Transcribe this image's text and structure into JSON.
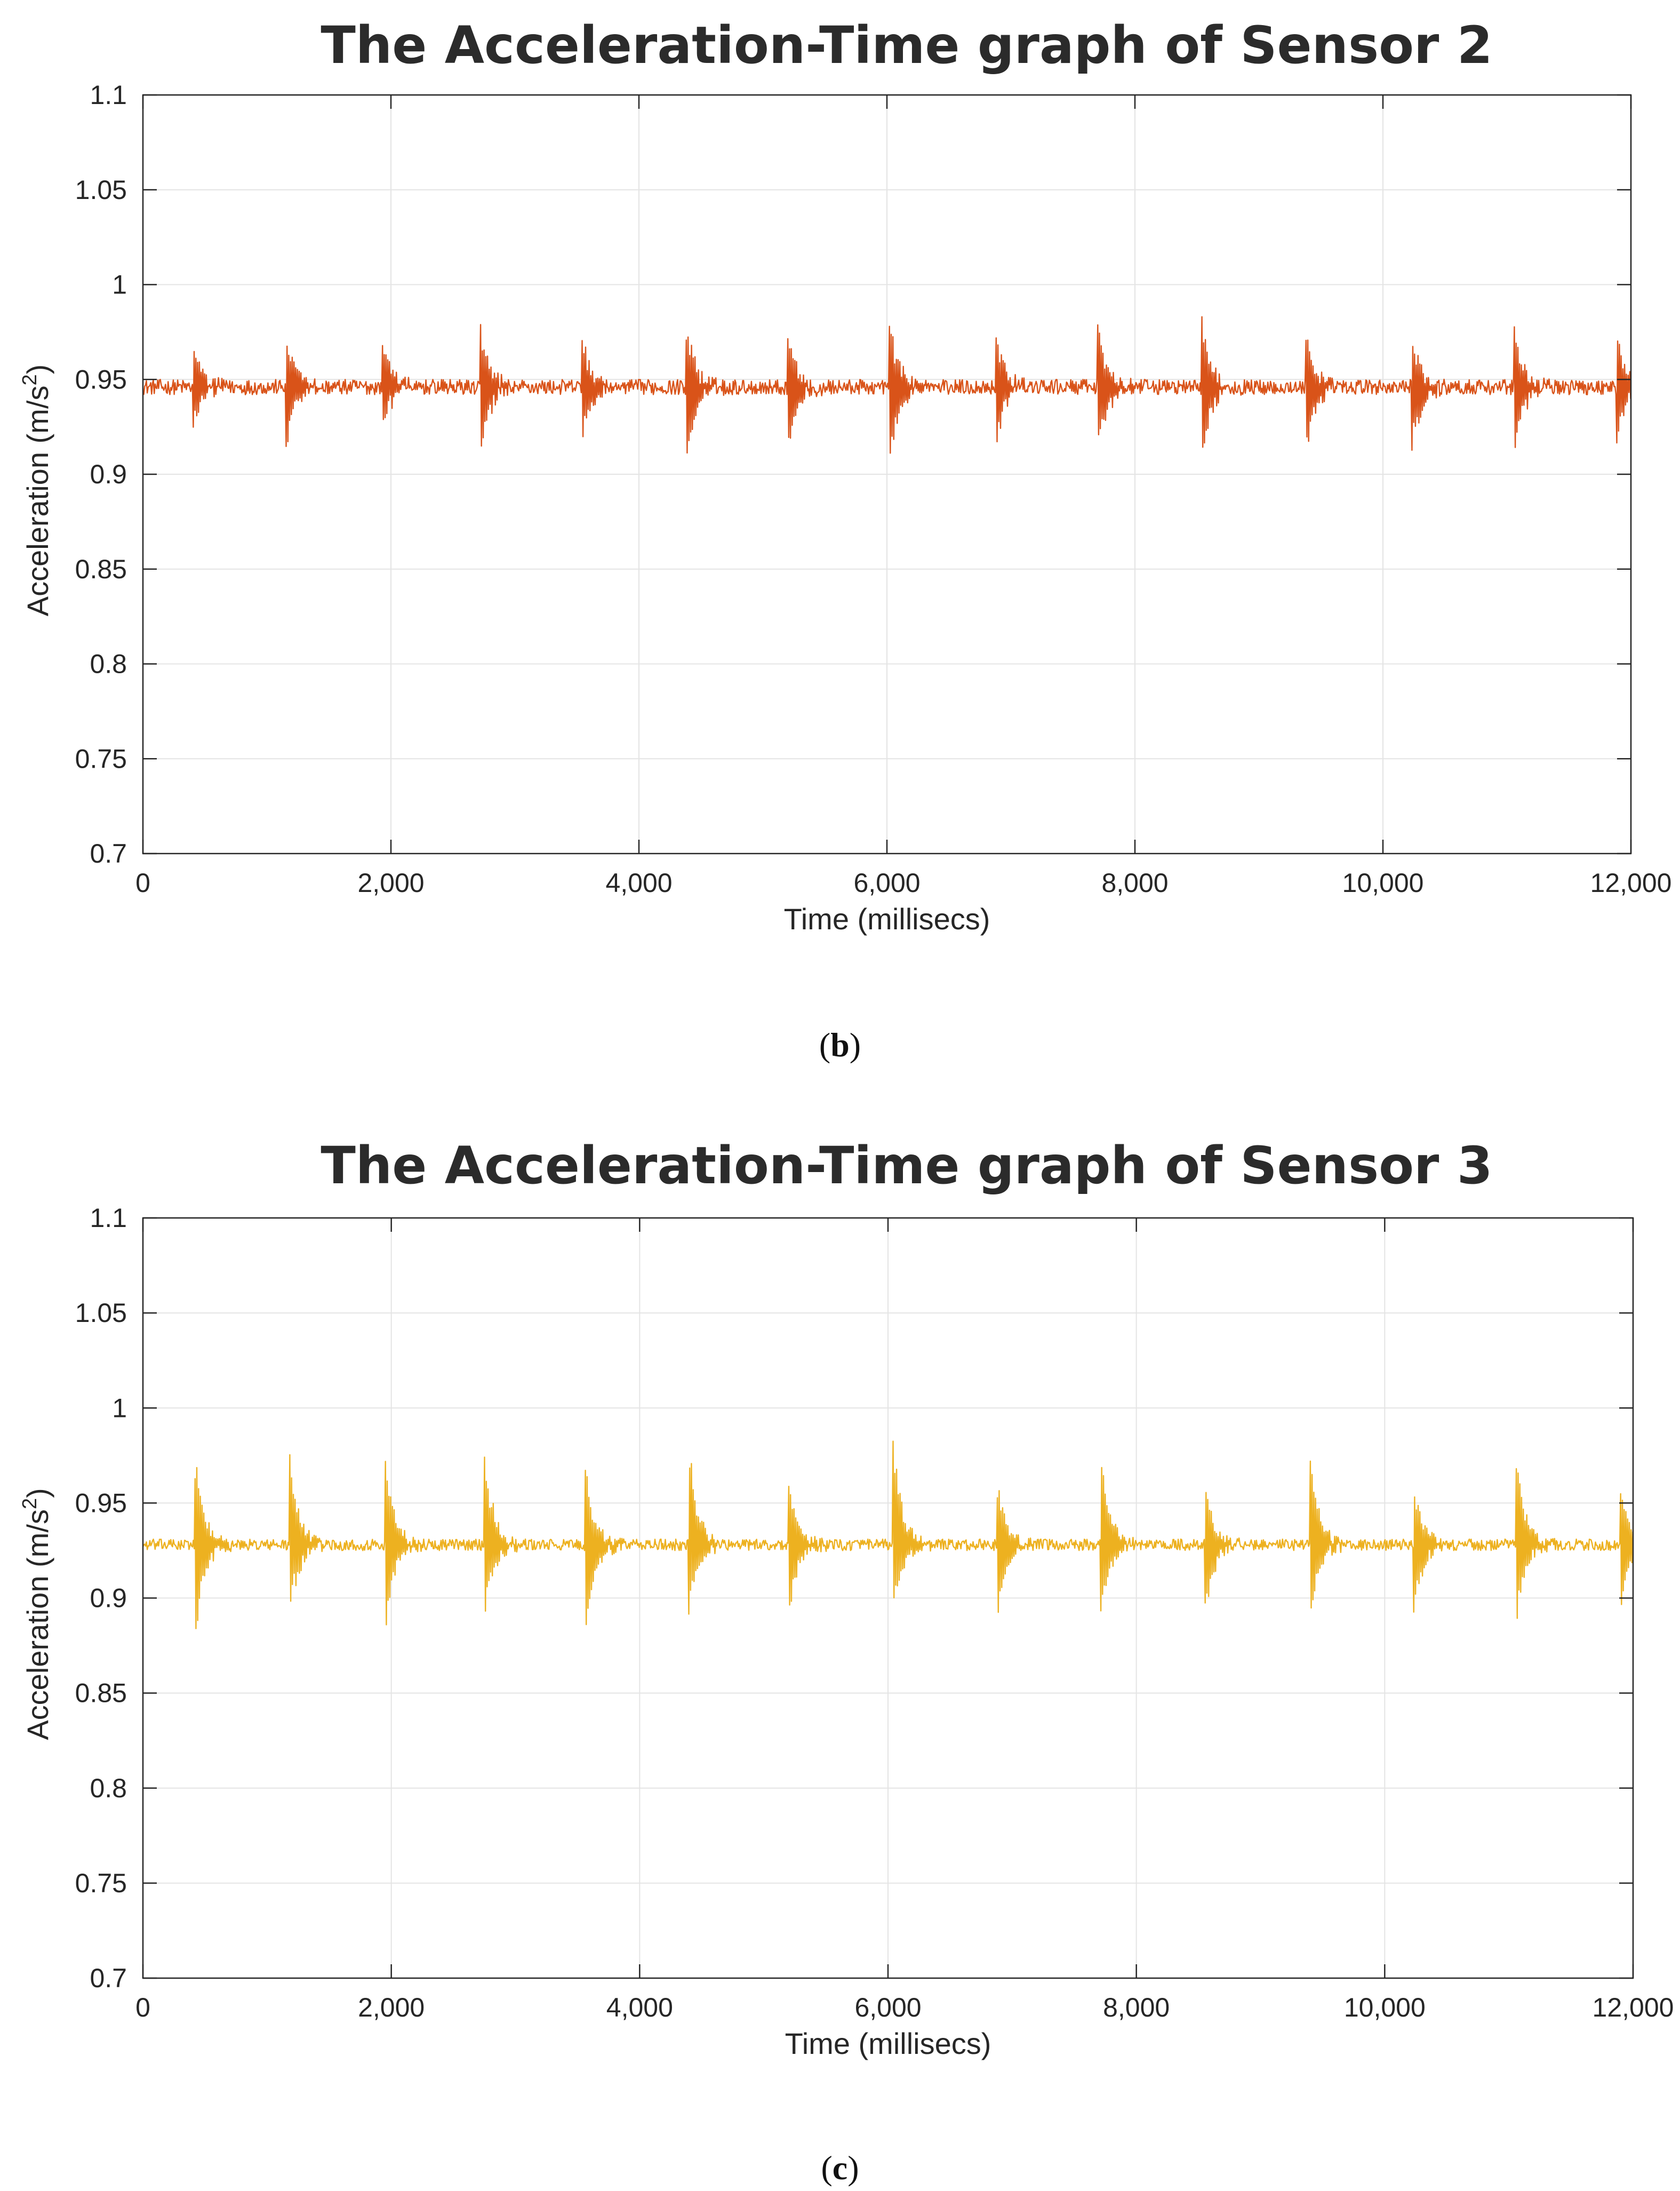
{
  "chart_data": [
    {
      "type": "line",
      "title": "The Acceleration-Time graph of Sensor 2",
      "xlabel": "Time (millisecs)",
      "ylabel_main": "Acceleration (m/s",
      "ylabel_sup": "2",
      "ylabel_end": ")",
      "xlim": [
        0,
        12000
      ],
      "ylim": [
        0.7,
        1.1
      ],
      "xticks": [
        0,
        2000,
        4000,
        6000,
        8000,
        10000,
        12000
      ],
      "xtick_labels": [
        "0",
        "2,000",
        "4,000",
        "6,000",
        "8,000",
        "10,000",
        "12,000"
      ],
      "yticks": [
        0.7,
        0.75,
        0.8,
        0.85,
        0.9,
        0.95,
        1,
        1.05,
        1.1
      ],
      "ytick_labels": [
        "0.7",
        "0.75",
        "0.8",
        "0.85",
        "0.9",
        "0.95",
        "1",
        "1.05",
        "1.1"
      ],
      "grid": true,
      "color": "#d95319",
      "series": [
        {
          "baseline": 0.946,
          "noise": 0.004,
          "spikes": [
            {
              "x": 400,
              "high": 0.97,
              "low": 0.922
            },
            {
              "x": 1150,
              "high": 0.978,
              "low": 0.909
            },
            {
              "x": 1930,
              "high": 0.972,
              "low": 0.92
            },
            {
              "x": 2720,
              "high": 0.98,
              "low": 0.905
            },
            {
              "x": 3540,
              "high": 0.974,
              "low": 0.918
            },
            {
              "x": 4380,
              "high": 0.981,
              "low": 0.904
            },
            {
              "x": 5200,
              "high": 0.976,
              "low": 0.91
            },
            {
              "x": 6020,
              "high": 0.983,
              "low": 0.904
            },
            {
              "x": 6880,
              "high": 0.977,
              "low": 0.91
            },
            {
              "x": 7700,
              "high": 0.981,
              "low": 0.907
            },
            {
              "x": 8540,
              "high": 0.983,
              "low": 0.905
            },
            {
              "x": 9380,
              "high": 0.976,
              "low": 0.909
            },
            {
              "x": 10230,
              "high": 0.977,
              "low": 0.908
            },
            {
              "x": 11060,
              "high": 0.978,
              "low": 0.909
            },
            {
              "x": 11880,
              "high": 0.977,
              "low": 0.914
            }
          ]
        }
      ]
    },
    {
      "type": "line",
      "title": "The Acceleration-Time graph of Sensor 3",
      "xlabel": "Time (millisecs)",
      "ylabel_main": "Acceleration (m/s",
      "ylabel_sup": "2",
      "ylabel_end": ")",
      "xlim": [
        0,
        12000
      ],
      "ylim": [
        0.7,
        1.1
      ],
      "xticks": [
        0,
        2000,
        4000,
        6000,
        8000,
        10000,
        12000
      ],
      "xtick_labels": [
        "0",
        "2,000",
        "4,000",
        "6,000",
        "8,000",
        "10,000",
        "12,000"
      ],
      "yticks": [
        0.7,
        0.75,
        0.8,
        0.85,
        0.9,
        0.95,
        1,
        1.05,
        1.1
      ],
      "ytick_labels": [
        "0.7",
        "0.75",
        "0.8",
        "0.85",
        "0.9",
        "0.95",
        "1",
        "1.05",
        "1.1"
      ],
      "grid": true,
      "color": "#edb120",
      "series": [
        {
          "baseline": 0.928,
          "noise": 0.003,
          "spikes": [
            {
              "x": 420,
              "high": 0.977,
              "low": 0.878
            },
            {
              "x": 1180,
              "high": 0.978,
              "low": 0.887
            },
            {
              "x": 1950,
              "high": 0.977,
              "low": 0.877
            },
            {
              "x": 2750,
              "high": 0.982,
              "low": 0.887
            },
            {
              "x": 3560,
              "high": 0.973,
              "low": 0.875
            },
            {
              "x": 4390,
              "high": 0.989,
              "low": 0.887
            },
            {
              "x": 5200,
              "high": 0.962,
              "low": 0.887
            },
            {
              "x": 6040,
              "high": 0.987,
              "low": 0.887
            },
            {
              "x": 6880,
              "high": 0.962,
              "low": 0.887
            },
            {
              "x": 7710,
              "high": 0.987,
              "low": 0.887
            },
            {
              "x": 8550,
              "high": 0.962,
              "low": 0.886
            },
            {
              "x": 9400,
              "high": 0.977,
              "low": 0.887
            },
            {
              "x": 10230,
              "high": 0.962,
              "low": 0.887
            },
            {
              "x": 11060,
              "high": 0.977,
              "low": 0.887
            },
            {
              "x": 11900,
              "high": 0.96,
              "low": 0.89
            }
          ]
        }
      ]
    }
  ],
  "captions": [
    "(b)",
    "(c)"
  ]
}
